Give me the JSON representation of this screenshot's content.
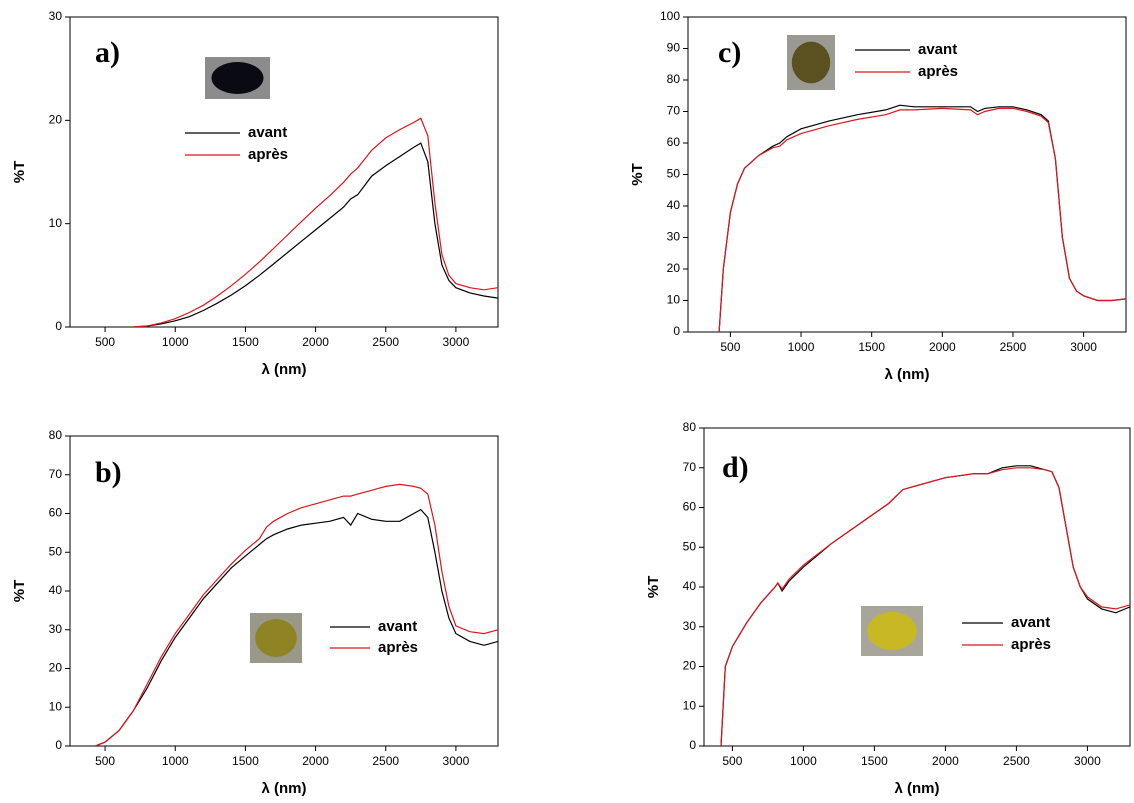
{
  "chart_data": [
    {
      "type": "line",
      "label": "a)",
      "xlabel": "λ (nm)",
      "ylabel": "%T",
      "xlim": [
        250,
        3300
      ],
      "xticks": [
        500,
        1000,
        1500,
        2000,
        2500,
        3000
      ],
      "ylim": [
        0,
        30
      ],
      "yticks": [
        0,
        10,
        20,
        30
      ],
      "x": [
        700,
        800,
        900,
        1000,
        1100,
        1200,
        1300,
        1400,
        1500,
        1600,
        1700,
        1800,
        1900,
        2000,
        2100,
        2200,
        2250,
        2300,
        2400,
        2500,
        2600,
        2700,
        2750,
        2800,
        2850,
        2900,
        2950,
        3000,
        3100,
        3200,
        3300
      ],
      "series": [
        {
          "name": "avant",
          "color": "#000000",
          "values": [
            0,
            0.1,
            0.3,
            0.6,
            1.0,
            1.6,
            2.3,
            3.1,
            4.0,
            5.0,
            6.1,
            7.2,
            8.3,
            9.4,
            10.5,
            11.6,
            12.4,
            12.8,
            14.6,
            15.6,
            16.5,
            17.4,
            17.8,
            16.0,
            10,
            6,
            4.5,
            3.8,
            3.3,
            3.0,
            2.8
          ]
        },
        {
          "name": "après",
          "color": "#e0141e",
          "values": [
            0,
            0.1,
            0.4,
            0.8,
            1.4,
            2.1,
            3.0,
            4.0,
            5.1,
            6.3,
            7.6,
            8.9,
            10.2,
            11.5,
            12.7,
            14.0,
            14.8,
            15.4,
            17.1,
            18.3,
            19.1,
            19.8,
            20.2,
            18.5,
            12,
            7,
            5,
            4.2,
            3.8,
            3.6,
            3.8
          ]
        }
      ]
    },
    {
      "type": "line",
      "label": "c)",
      "xlabel": "λ (nm)",
      "ylabel": "%T",
      "xlim": [
        200,
        3300
      ],
      "xticks": [
        500,
        1000,
        1500,
        2000,
        2500,
        3000
      ],
      "ylim": [
        0,
        100
      ],
      "yticks": [
        0,
        10,
        20,
        30,
        40,
        50,
        60,
        70,
        80,
        90,
        100
      ],
      "x": [
        420,
        450,
        500,
        550,
        600,
        700,
        800,
        850,
        900,
        1000,
        1200,
        1400,
        1600,
        1700,
        1800,
        2000,
        2200,
        2250,
        2300,
        2400,
        2500,
        2600,
        2700,
        2750,
        2800,
        2850,
        2900,
        2950,
        3000,
        3100,
        3200,
        3300
      ],
      "series": [
        {
          "name": "avant",
          "color": "#000000",
          "values": [
            0,
            20,
            38,
            47,
            52,
            56,
            59,
            60,
            62,
            64.5,
            67,
            69,
            70.5,
            72,
            71.5,
            71.5,
            71.5,
            70,
            71,
            71.5,
            71.5,
            70.5,
            69,
            67,
            55,
            30,
            17,
            13,
            11.5,
            10,
            10,
            10.5
          ]
        },
        {
          "name": "après",
          "color": "#e0141e",
          "values": [
            0,
            20,
            38,
            47,
            52,
            56,
            58.5,
            59,
            61,
            63,
            65.5,
            67.5,
            69,
            70.5,
            70.5,
            71,
            70.5,
            69,
            70,
            71,
            71,
            70,
            68.5,
            66.5,
            55,
            30,
            17,
            13,
            11.5,
            10,
            10,
            10.5
          ]
        }
      ]
    },
    {
      "type": "line",
      "label": "b)",
      "xlabel": "λ (nm)",
      "ylabel": "%T",
      "xlim": [
        250,
        3300
      ],
      "xticks": [
        500,
        1000,
        1500,
        2000,
        2500,
        3000
      ],
      "ylim": [
        0,
        80
      ],
      "yticks": [
        0,
        10,
        20,
        30,
        40,
        50,
        60,
        70,
        80
      ],
      "x": [
        430,
        500,
        600,
        700,
        800,
        900,
        1000,
        1100,
        1200,
        1300,
        1400,
        1500,
        1600,
        1650,
        1700,
        1800,
        1900,
        2000,
        2100,
        2200,
        2250,
        2300,
        2400,
        2500,
        2600,
        2700,
        2750,
        2800,
        2850,
        2900,
        2950,
        3000,
        3100,
        3200,
        3300
      ],
      "series": [
        {
          "name": "avant",
          "color": "#000000",
          "values": [
            0,
            1,
            4,
            9,
            15,
            22,
            28,
            33,
            38,
            42,
            46,
            49,
            52,
            53.5,
            54.5,
            56,
            57,
            57.5,
            58,
            59,
            57,
            60,
            58.5,
            58,
            58,
            60,
            61,
            59,
            50,
            40,
            33,
            29,
            27,
            26,
            27
          ]
        },
        {
          "name": "après",
          "color": "#e0141e",
          "values": [
            0,
            1,
            4,
            9,
            16,
            23,
            29,
            34,
            39,
            43,
            47,
            50.5,
            53.5,
            56.5,
            58,
            60,
            61.5,
            62.5,
            63.5,
            64.5,
            64.5,
            65,
            66,
            67,
            67.5,
            67,
            66.5,
            65,
            57,
            45,
            36,
            31,
            29.5,
            29,
            30
          ]
        }
      ]
    },
    {
      "type": "line",
      "label": "d)",
      "xlabel": "λ (nm)",
      "ylabel": "%T",
      "xlim": [
        300,
        3300
      ],
      "xticks": [
        500,
        1000,
        1500,
        2000,
        2500,
        3000
      ],
      "ylim": [
        0,
        80
      ],
      "yticks": [
        0,
        10,
        20,
        30,
        40,
        50,
        60,
        70,
        80
      ],
      "x": [
        420,
        450,
        500,
        600,
        700,
        800,
        820,
        850,
        900,
        1000,
        1200,
        1400,
        1600,
        1700,
        1800,
        2000,
        2200,
        2300,
        2400,
        2500,
        2600,
        2700,
        2750,
        2800,
        2850,
        2900,
        2950,
        3000,
        3100,
        3200,
        3300
      ],
      "series": [
        {
          "name": "avant",
          "color": "#000000",
          "values": [
            0,
            20,
            25,
            31,
            36,
            40,
            41,
            39,
            41.5,
            45,
            51,
            56,
            61,
            64.5,
            65.5,
            67.5,
            68.5,
            68.5,
            70,
            70.5,
            70.5,
            69.5,
            69,
            65,
            55,
            45,
            40,
            37,
            34.5,
            33.5,
            35
          ]
        },
        {
          "name": "après",
          "color": "#e0141e",
          "values": [
            0,
            20,
            25,
            31,
            36,
            40,
            41,
            39.5,
            42,
            45.5,
            51,
            56,
            61,
            64.5,
            65.5,
            67.5,
            68.5,
            68.5,
            69.5,
            70,
            70,
            69.5,
            69,
            65,
            55,
            45,
            40,
            37.5,
            35,
            34.5,
            35.5
          ]
        }
      ]
    }
  ]
}
